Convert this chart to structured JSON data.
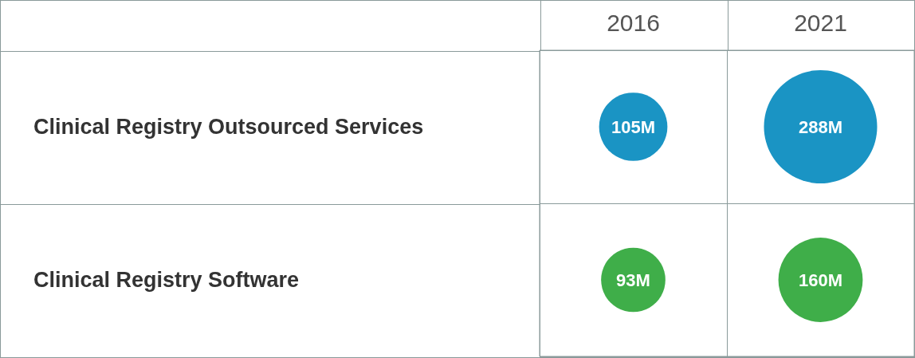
{
  "chart_data": {
    "type": "other",
    "categories": [
      "Clinical Registry Outsourced Services",
      "Clinical Registry Software"
    ],
    "series": [
      {
        "name": "2016",
        "colors": [
          "#1a94c4",
          "#3fae49"
        ],
        "values": [
          105,
          93
        ],
        "value_labels": [
          "105M",
          "93M"
        ]
      },
      {
        "name": "2021",
        "colors": [
          "#1a94c4",
          "#3fae49"
        ],
        "values": [
          288,
          160
        ],
        "value_labels": [
          "288M",
          "160M"
        ]
      }
    ],
    "legend": false
  }
}
